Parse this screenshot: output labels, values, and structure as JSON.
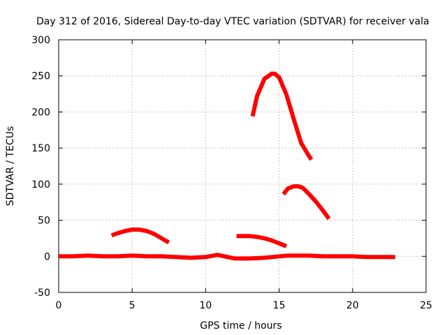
{
  "chart_data": {
    "type": "line",
    "title": "Day 312 of 2016, Sidereal Day-to-day VTEC variation (SDTVAR) for receiver vala",
    "xlabel": "GPS time / hours",
    "ylabel": "SDTVAR / TECUs",
    "xlim": [
      0,
      25
    ],
    "ylim": [
      -50,
      300
    ],
    "xticks": [
      0,
      5,
      10,
      15,
      20,
      25
    ],
    "yticks": [
      -50,
      0,
      50,
      100,
      150,
      200,
      250,
      300
    ],
    "grid": true,
    "color": "#ff0000",
    "series": [
      {
        "x": [
          0,
          1,
          2,
          3,
          4,
          5,
          6,
          7,
          8,
          9,
          10,
          10.8,
          11.5,
          12,
          12.6,
          13,
          14,
          15,
          15.6,
          16,
          17,
          18,
          19,
          20,
          21,
          22,
          22.9
        ],
        "y": [
          0,
          0,
          1,
          0,
          0,
          1,
          0,
          0,
          -1,
          -2,
          -1,
          2,
          -1,
          -3,
          -3,
          -3,
          -2,
          0,
          1,
          1,
          1,
          0,
          0,
          0,
          -1,
          -1,
          -1
        ]
      },
      {
        "x": [
          3.6,
          4,
          4.5,
          5,
          5.5,
          6,
          6.5,
          7,
          7.5
        ],
        "y": [
          29,
          32,
          35,
          37,
          37,
          35,
          31,
          25,
          19
        ]
      },
      {
        "x": [
          12.1,
          12.5,
          13,
          13.5,
          14,
          14.5,
          15,
          15.5
        ],
        "y": [
          28,
          28,
          28,
          27,
          25,
          22,
          18,
          14
        ]
      },
      {
        "x": [
          13.2,
          13.5,
          14,
          14.5,
          14.7,
          15,
          15.5,
          16,
          16.5,
          17,
          17.2
        ],
        "y": [
          194,
          222,
          246,
          253,
          253,
          248,
          224,
          190,
          157,
          140,
          134
        ]
      },
      {
        "x": [
          15.3,
          15.6,
          16,
          16.3,
          16.6,
          17,
          17.5,
          18,
          18.4
        ],
        "y": [
          86,
          94,
          97,
          97,
          95,
          87,
          76,
          63,
          52
        ]
      }
    ]
  }
}
